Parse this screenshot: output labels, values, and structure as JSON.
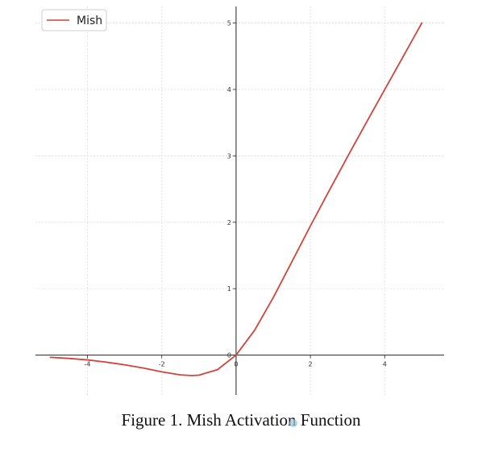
{
  "chart_data": {
    "type": "line",
    "title": "",
    "xlabel": "",
    "ylabel": "",
    "xlim": [
      -5.4,
      5.6
    ],
    "ylim": [
      -0.6,
      5.25
    ],
    "x_ticks": [
      -4,
      -2,
      0,
      2,
      4
    ],
    "y_ticks": [
      0,
      1,
      2,
      3,
      4,
      5
    ],
    "x_tick_labels": [
      "-4",
      "-2",
      "0",
      "2",
      "4"
    ],
    "y_tick_labels": [
      "0",
      "1",
      "2",
      "3",
      "4",
      "5"
    ],
    "grid": true,
    "legend": {
      "placement": "top-left",
      "entries": [
        "Mish"
      ]
    },
    "series": [
      {
        "name": "Mish",
        "color": "#d0443a",
        "x": [
          -5,
          -4.5,
          -4,
          -3.5,
          -3,
          -2.5,
          -2,
          -1.5,
          -1.2,
          -1,
          -0.5,
          0,
          0.5,
          1,
          1.5,
          2,
          2.5,
          3,
          3.5,
          4,
          4.5,
          5
        ],
        "y": [
          -0.034,
          -0.05,
          -0.073,
          -0.106,
          -0.146,
          -0.195,
          -0.253,
          -0.298,
          -0.309,
          -0.303,
          -0.219,
          0,
          0.375,
          0.865,
          1.403,
          1.944,
          2.47,
          2.987,
          3.495,
          3.997,
          4.499,
          5.0
        ]
      }
    ]
  },
  "caption": "Figure 1.  Mish Activation Function"
}
